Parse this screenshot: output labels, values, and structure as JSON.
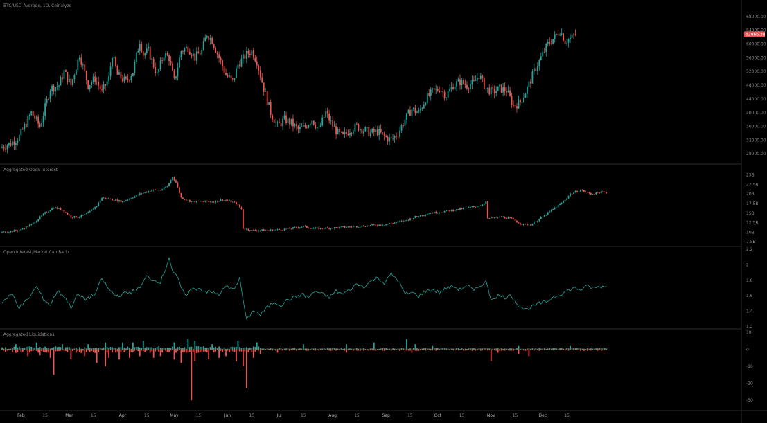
{
  "chart_data": [
    {
      "type": "candlestick",
      "title": "BTC/USD Average, 1D, Coinalyze",
      "ylim": [
        26000,
        70000
      ],
      "y_ticks": [
        "28000.00",
        "32000.00",
        "36000.00",
        "40000.00",
        "44000.00",
        "48000.00",
        "52000.00",
        "56000.00",
        "60000.00",
        "64000.00",
        "68000.00"
      ],
      "last_price": "62866.38",
      "close_waypoints": [
        [
          0,
          30000
        ],
        [
          5,
          31000
        ],
        [
          10,
          33000
        ],
        [
          17,
          40000
        ],
        [
          22,
          36000
        ],
        [
          28,
          47000
        ],
        [
          33,
          48000
        ],
        [
          36,
          52000
        ],
        [
          40,
          48000
        ],
        [
          45,
          57000
        ],
        [
          50,
          48000
        ],
        [
          54,
          50000
        ],
        [
          58,
          46000
        ],
        [
          62,
          50000
        ],
        [
          64,
          57000
        ],
        [
          67,
          51000
        ],
        [
          72,
          49000
        ],
        [
          76,
          52000
        ],
        [
          80,
          61000
        ],
        [
          82,
          57000
        ],
        [
          85,
          58000
        ],
        [
          90,
          51000
        ],
        [
          94,
          57000
        ],
        [
          97,
          56000
        ],
        [
          100,
          49000
        ],
        [
          104,
          58000
        ],
        [
          108,
          59000
        ],
        [
          112,
          56000
        ],
        [
          116,
          58000
        ],
        [
          119,
          63000
        ],
        [
          122,
          61000
        ],
        [
          126,
          56000
        ],
        [
          130,
          51000
        ],
        [
          134,
          49000
        ],
        [
          137,
          54000
        ],
        [
          142,
          57000
        ],
        [
          145,
          58000
        ],
        [
          148,
          55000
        ],
        [
          152,
          47000
        ],
        [
          156,
          40000
        ],
        [
          160,
          36000
        ],
        [
          164,
          38000
        ],
        [
          168,
          37000
        ],
        [
          172,
          35000
        ],
        [
          176,
          36000
        ],
        [
          180,
          38000
        ],
        [
          184,
          35000
        ],
        [
          188,
          40000
        ],
        [
          191,
          37000
        ],
        [
          195,
          34000
        ],
        [
          198,
          33000
        ],
        [
          202,
          35000
        ],
        [
          206,
          36000
        ],
        [
          210,
          35000
        ],
        [
          214,
          34000
        ],
        [
          218,
          34500
        ],
        [
          222,
          33000
        ],
        [
          226,
          32000
        ],
        [
          230,
          34000
        ],
        [
          234,
          38000
        ],
        [
          238,
          41000
        ],
        [
          242,
          40000
        ],
        [
          246,
          44000
        ],
        [
          250,
          46000
        ],
        [
          254,
          47000
        ],
        [
          258,
          45000
        ],
        [
          262,
          48000
        ],
        [
          266,
          49000
        ],
        [
          270,
          48000
        ],
        [
          274,
          48500
        ],
        [
          277,
          51000
        ],
        [
          281,
          47000
        ],
        [
          285,
          46000
        ],
        [
          289,
          47000
        ],
        [
          293,
          46500
        ],
        [
          297,
          42000
        ],
        [
          301,
          43000
        ],
        [
          305,
          47000
        ],
        [
          309,
          52000
        ],
        [
          313,
          56000
        ],
        [
          317,
          60000
        ],
        [
          321,
          62000
        ],
        [
          324,
          64000
        ],
        [
          327,
          61000
        ],
        [
          330,
          61500
        ],
        [
          333,
          62866
        ]
      ]
    },
    {
      "type": "candlestick",
      "title": "Aggregated Open Interest",
      "ylim": [
        7000000000,
        26000000000
      ],
      "y_ticks": [
        "7.5B",
        "10B",
        "12.5B",
        "15B",
        "17.5B",
        "20B",
        "22.5B",
        "25B"
      ],
      "close_waypoints": [
        [
          0,
          10
        ],
        [
          10,
          10.5
        ],
        [
          17,
          12
        ],
        [
          25,
          15
        ],
        [
          30,
          16.5
        ],
        [
          35,
          15.8
        ],
        [
          40,
          14
        ],
        [
          45,
          14
        ],
        [
          50,
          15
        ],
        [
          55,
          17
        ],
        [
          58,
          19
        ],
        [
          61,
          18.8
        ],
        [
          70,
          18
        ],
        [
          80,
          20
        ],
        [
          87,
          21
        ],
        [
          92,
          21
        ],
        [
          96,
          22
        ],
        [
          99,
          24.5
        ],
        [
          101,
          23
        ],
        [
          104,
          19
        ],
        [
          110,
          18
        ],
        [
          118,
          18
        ],
        [
          123,
          18
        ],
        [
          128,
          18.5
        ],
        [
          133,
          18
        ],
        [
          136,
          17.5
        ],
        [
          139,
          16
        ],
        [
          140,
          11
        ],
        [
          145,
          10.5
        ],
        [
          155,
          10.5
        ],
        [
          165,
          10.8
        ],
        [
          175,
          11.5
        ],
        [
          180,
          11
        ],
        [
          185,
          11
        ],
        [
          195,
          11.2
        ],
        [
          205,
          11.5
        ],
        [
          215,
          11.8
        ],
        [
          222,
          12
        ],
        [
          228,
          12.5
        ],
        [
          234,
          13
        ],
        [
          240,
          14
        ],
        [
          248,
          15
        ],
        [
          258,
          15.5
        ],
        [
          266,
          16
        ],
        [
          272,
          16.5
        ],
        [
          278,
          17
        ],
        [
          281,
          18
        ],
        [
          282,
          13.5
        ],
        [
          290,
          14
        ],
        [
          296,
          13.5
        ],
        [
          302,
          12
        ],
        [
          307,
          12
        ],
        [
          314,
          14
        ],
        [
          320,
          16
        ],
        [
          326,
          18
        ],
        [
          330,
          20
        ],
        [
          336,
          21
        ],
        [
          342,
          20
        ],
        [
          348,
          20.5
        ],
        [
          351,
          20.3
        ]
      ]
    },
    {
      "type": "line",
      "title": "Open Interest/Market Cap Ratio",
      "ylim": [
        1.2,
        2.2
      ],
      "y_ticks": [
        "1.2",
        "1.4",
        "1.6",
        "1.8",
        "2",
        "2.2"
      ],
      "color": "#26a69a",
      "waypoints": [
        [
          0,
          1.52
        ],
        [
          6,
          1.62
        ],
        [
          10,
          1.45
        ],
        [
          15,
          1.55
        ],
        [
          20,
          1.72
        ],
        [
          24,
          1.56
        ],
        [
          28,
          1.48
        ],
        [
          32,
          1.66
        ],
        [
          36,
          1.6
        ],
        [
          40,
          1.45
        ],
        [
          44,
          1.62
        ],
        [
          48,
          1.55
        ],
        [
          54,
          1.62
        ],
        [
          58,
          1.82
        ],
        [
          62,
          1.68
        ],
        [
          66,
          1.6
        ],
        [
          70,
          1.62
        ],
        [
          75,
          1.65
        ],
        [
          80,
          1.7
        ],
        [
          84,
          1.85
        ],
        [
          88,
          1.8
        ],
        [
          92,
          1.78
        ],
        [
          95,
          1.95
        ],
        [
          97,
          2.1
        ],
        [
          99,
          1.92
        ],
        [
          102,
          1.82
        ],
        [
          106,
          1.6
        ],
        [
          110,
          1.68
        ],
        [
          114,
          1.7
        ],
        [
          118,
          1.66
        ],
        [
          122,
          1.64
        ],
        [
          126,
          1.62
        ],
        [
          130,
          1.72
        ],
        [
          134,
          1.68
        ],
        [
          138,
          1.82
        ],
        [
          140,
          1.55
        ],
        [
          142,
          1.28
        ],
        [
          146,
          1.42
        ],
        [
          150,
          1.35
        ],
        [
          154,
          1.45
        ],
        [
          158,
          1.52
        ],
        [
          162,
          1.48
        ],
        [
          166,
          1.55
        ],
        [
          170,
          1.58
        ],
        [
          174,
          1.62
        ],
        [
          178,
          1.58
        ],
        [
          182,
          1.66
        ],
        [
          186,
          1.62
        ],
        [
          190,
          1.58
        ],
        [
          194,
          1.66
        ],
        [
          198,
          1.62
        ],
        [
          202,
          1.68
        ],
        [
          206,
          1.75
        ],
        [
          210,
          1.72
        ],
        [
          214,
          1.78
        ],
        [
          218,
          1.84
        ],
        [
          222,
          1.76
        ],
        [
          226,
          1.88
        ],
        [
          230,
          1.8
        ],
        [
          234,
          1.62
        ],
        [
          238,
          1.64
        ],
        [
          242,
          1.6
        ],
        [
          246,
          1.66
        ],
        [
          250,
          1.68
        ],
        [
          254,
          1.64
        ],
        [
          258,
          1.7
        ],
        [
          262,
          1.72
        ],
        [
          266,
          1.68
        ],
        [
          270,
          1.74
        ],
        [
          274,
          1.66
        ],
        [
          278,
          1.74
        ],
        [
          281,
          1.78
        ],
        [
          284,
          1.56
        ],
        [
          288,
          1.6
        ],
        [
          292,
          1.58
        ],
        [
          296,
          1.6
        ],
        [
          300,
          1.48
        ],
        [
          304,
          1.42
        ],
        [
          308,
          1.46
        ],
        [
          312,
          1.5
        ],
        [
          316,
          1.52
        ],
        [
          320,
          1.58
        ],
        [
          324,
          1.62
        ],
        [
          328,
          1.66
        ],
        [
          332,
          1.7
        ],
        [
          336,
          1.68
        ],
        [
          340,
          1.72
        ],
        [
          344,
          1.7
        ],
        [
          348,
          1.72
        ],
        [
          351,
          1.72
        ]
      ]
    },
    {
      "type": "bar",
      "title": "Aggregated Liquidations",
      "ylim": [
        -34,
        10
      ],
      "y_ticks": [
        "10",
        "0",
        "-10",
        "-20",
        "-30"
      ],
      "positive_color": "#26a69a",
      "negative_color": "#ef5350",
      "spikes": [
        [
          15,
          -4
        ],
        [
          22,
          -3.5
        ],
        [
          28,
          -5
        ],
        [
          30,
          -15
        ],
        [
          40,
          -6
        ],
        [
          48,
          -4
        ],
        [
          55,
          -8
        ],
        [
          60,
          -10
        ],
        [
          62,
          -5
        ],
        [
          68,
          -6
        ],
        [
          74,
          -5
        ],
        [
          80,
          -4
        ],
        [
          88,
          -5
        ],
        [
          92,
          -4
        ],
        [
          100,
          -6
        ],
        [
          104,
          -8
        ],
        [
          110,
          -30
        ],
        [
          112,
          -7
        ],
        [
          120,
          -6
        ],
        [
          126,
          -5
        ],
        [
          130,
          -4
        ],
        [
          136,
          -7
        ],
        [
          140,
          -10
        ],
        [
          142,
          -23
        ],
        [
          146,
          -5
        ],
        [
          150,
          -3
        ],
        [
          160,
          -2
        ],
        [
          200,
          -2
        ],
        [
          238,
          -2
        ],
        [
          284,
          -7
        ],
        [
          288,
          -2
        ],
        [
          300,
          -3
        ],
        [
          306,
          -4
        ]
      ],
      "pos_spikes": [
        [
          8,
          3
        ],
        [
          20,
          4
        ],
        [
          35,
          3
        ],
        [
          50,
          3
        ],
        [
          60,
          4
        ],
        [
          70,
          4
        ],
        [
          76,
          4
        ],
        [
          82,
          5
        ],
        [
          100,
          4
        ],
        [
          108,
          6
        ],
        [
          112,
          5
        ],
        [
          122,
          3
        ],
        [
          137,
          5
        ],
        [
          148,
          4
        ],
        [
          175,
          3
        ],
        [
          200,
          3
        ],
        [
          216,
          4
        ],
        [
          235,
          6
        ],
        [
          240,
          3
        ],
        [
          250,
          2
        ],
        [
          300,
          2
        ],
        [
          330,
          2
        ]
      ]
    }
  ],
  "x_axis": {
    "labels": [
      {
        "text": "Feb",
        "i": 11
      },
      {
        "text": "15",
        "i": 25
      },
      {
        "text": "Mar",
        "i": 39
      },
      {
        "text": "15",
        "i": 53
      },
      {
        "text": "Apr",
        "i": 70
      },
      {
        "text": "15",
        "i": 84
      },
      {
        "text": "May",
        "i": 100
      },
      {
        "text": "15",
        "i": 114
      },
      {
        "text": "Jun",
        "i": 131
      },
      {
        "text": "15",
        "i": 145
      },
      {
        "text": "Jul",
        "i": 161
      },
      {
        "text": "15",
        "i": 175
      },
      {
        "text": "Aug",
        "i": 192
      },
      {
        "text": "15",
        "i": 206
      },
      {
        "text": "Sep",
        "i": 223
      },
      {
        "text": "15",
        "i": 237
      },
      {
        "text": "Oct",
        "i": 253
      },
      {
        "text": "15",
        "i": 267
      },
      {
        "text": "Nov",
        "i": 284
      },
      {
        "text": "15",
        "i": 298
      },
      {
        "text": "Dec",
        "i": 314
      },
      {
        "text": "15",
        "i": 328
      }
    ]
  },
  "colors": {
    "up": "#26a69a",
    "down": "#ef5350",
    "badge": "#ef5350",
    "grid": "#1f1f1f"
  }
}
